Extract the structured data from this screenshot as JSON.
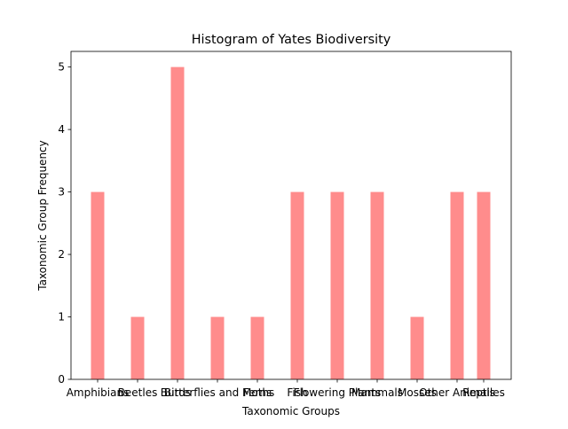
{
  "chart_data": {
    "type": "bar",
    "title": "Histogram of Yates Biodiversity",
    "xlabel": "Taxonomic Groups",
    "ylabel": "Taxonomic Group Frequency",
    "categories": [
      "Amphibians",
      "Beetles",
      "Birds",
      "Butterflies and Moths",
      "Ferns",
      "Fish",
      "Flowering Plants",
      "Mammals",
      "Mosses",
      "Other Animals",
      "Reptiles"
    ],
    "values": [
      3,
      1,
      5,
      1,
      1,
      3,
      3,
      3,
      1,
      3,
      3
    ],
    "ylim": [
      0,
      5.25
    ],
    "yticks": [
      0,
      1,
      2,
      3,
      4,
      5
    ],
    "grid": false,
    "legend": "none",
    "colors": {
      "bar": "#ff8c8c",
      "axis": "#000000",
      "background": "#ffffff"
    }
  }
}
